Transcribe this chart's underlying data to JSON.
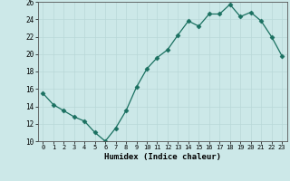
{
  "x": [
    0,
    1,
    2,
    3,
    4,
    5,
    6,
    7,
    8,
    9,
    10,
    11,
    12,
    13,
    14,
    15,
    16,
    17,
    18,
    19,
    20,
    21,
    22,
    23
  ],
  "y": [
    15.5,
    14.2,
    13.5,
    12.8,
    12.3,
    11.0,
    10.0,
    11.5,
    13.5,
    16.2,
    18.3,
    19.6,
    20.5,
    22.2,
    23.8,
    23.2,
    24.6,
    24.6,
    25.7,
    24.3,
    24.8,
    23.8,
    22.0,
    19.8
  ],
  "xlabel": "Humidex (Indice chaleur)",
  "ylim": [
    10,
    26
  ],
  "xlim": [
    -0.5,
    23.5
  ],
  "yticks": [
    10,
    12,
    14,
    16,
    18,
    20,
    22,
    24,
    26
  ],
  "xticks": [
    0,
    1,
    2,
    3,
    4,
    5,
    6,
    7,
    8,
    9,
    10,
    11,
    12,
    13,
    14,
    15,
    16,
    17,
    18,
    19,
    20,
    21,
    22,
    23
  ],
  "line_color": "#1a7060",
  "marker_color": "#1a7060",
  "bg_color": "#cce8e8",
  "grid_color": "#b8d8d8",
  "axes_color": "#555555"
}
